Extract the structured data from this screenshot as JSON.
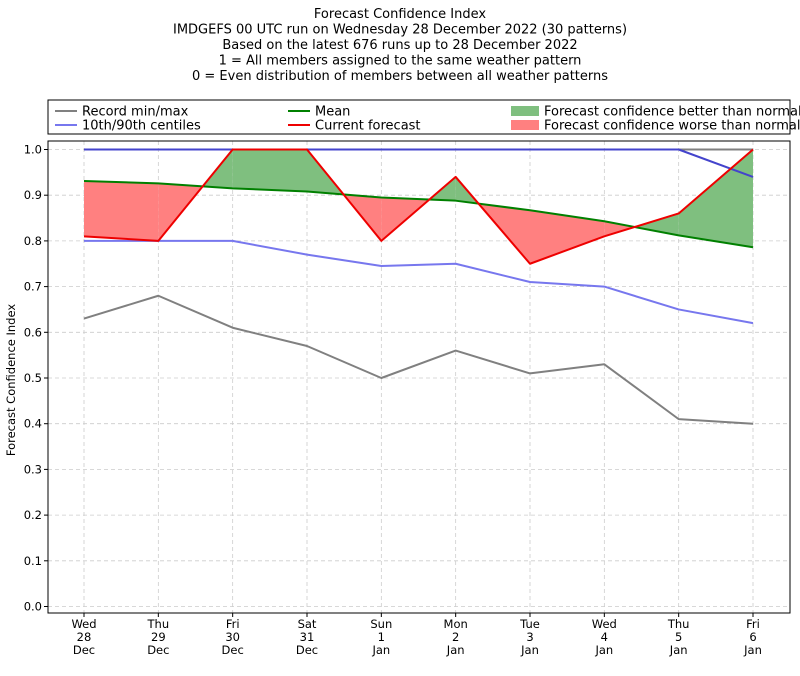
{
  "chart_data": {
    "type": "line",
    "title_lines": [
      "Forecast Confidence Index",
      "IMDGEFS 00 UTC run on Wednesday 28 December 2022 (30 patterns)",
      "Based on the latest 676 runs up to 28 December 2022",
      "1 = All members assigned to the same weather pattern",
      "0 = Even distribution of members between all weather patterns"
    ],
    "ylabel": "Forecast Confidence Index",
    "xlabel": "",
    "ylim": [
      0,
      1
    ],
    "yticks": [
      "0.0",
      "0.1",
      "0.2",
      "0.3",
      "0.4",
      "0.5",
      "0.6",
      "0.7",
      "0.8",
      "0.9",
      "1.0"
    ],
    "grid": true,
    "legend_position": "top",
    "categories": [
      [
        "Wed",
        "28",
        "Dec"
      ],
      [
        "Thu",
        "29",
        "Dec"
      ],
      [
        "Fri",
        "30",
        "Dec"
      ],
      [
        "Sat",
        "31",
        "Dec"
      ],
      [
        "Sun",
        "1",
        "Jan"
      ],
      [
        "Mon",
        "2",
        "Jan"
      ],
      [
        "Tue",
        "3",
        "Jan"
      ],
      [
        "Wed",
        "4",
        "Jan"
      ],
      [
        "Thu",
        "5",
        "Jan"
      ],
      [
        "Fri",
        "6",
        "Jan"
      ]
    ],
    "series": [
      {
        "name": "Record min/max",
        "role": "record-min",
        "color": "#808080",
        "values": [
          0.63,
          0.68,
          0.61,
          0.57,
          0.5,
          0.56,
          0.51,
          0.53,
          0.41,
          0.4
        ]
      },
      {
        "role": "record-max",
        "color": "#808080",
        "values": [
          1.0,
          1.0,
          1.0,
          1.0,
          1.0,
          1.0,
          1.0,
          1.0,
          1.0,
          1.0
        ]
      },
      {
        "name": "10th/90th centiles",
        "role": "centile-10",
        "color": "#7777ee",
        "values": [
          0.8,
          0.8,
          0.8,
          0.77,
          0.745,
          0.75,
          0.71,
          0.7,
          0.65,
          0.62
        ]
      },
      {
        "role": "centile-90",
        "color": "#4444cc",
        "values": [
          1.0,
          1.0,
          1.0,
          1.0,
          1.0,
          1.0,
          1.0,
          1.0,
          1.0,
          0.94
        ]
      },
      {
        "name": "Mean",
        "role": "mean",
        "color": "#008000",
        "values": [
          0.931,
          0.926,
          0.915,
          0.908,
          0.895,
          0.888,
          0.867,
          0.843,
          0.812,
          0.786
        ]
      },
      {
        "name": "Current forecast",
        "role": "current",
        "color": "#ee0000",
        "values": [
          0.81,
          0.8,
          1.0,
          1.0,
          0.8,
          0.94,
          0.75,
          0.81,
          0.86,
          1.0
        ]
      }
    ],
    "fills": [
      {
        "name": "Forecast confidence better than normal",
        "color": "#7fbf7f"
      },
      {
        "name": "Forecast confidence worse than normal",
        "color": "#ff8080"
      }
    ]
  }
}
